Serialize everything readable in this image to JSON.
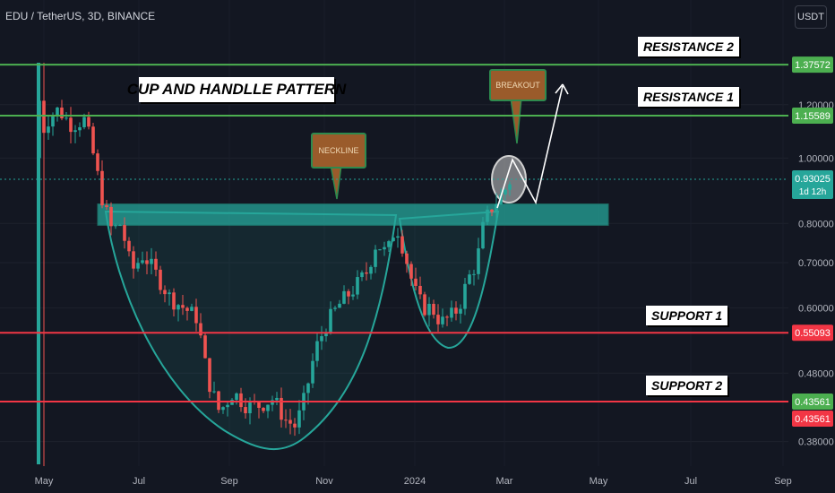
{
  "header": {
    "title": "EDU / TetherUS, 3D, BINANCE",
    "currency_button": "USDT"
  },
  "annotations": {
    "pattern_title": "CUP AND HANDLLE PATTERN",
    "neckline": "NECKLINE",
    "breakout": "BREAKOUT",
    "resistance_1": "RESISTANCE 1",
    "resistance_2": "RESISTANCE 2",
    "support_1": "SUPPORT 1",
    "support_2": "SUPPORT 2"
  },
  "price_tags": {
    "resistance_2": "1.37572",
    "resistance_1": "1.15589",
    "current_price": "0.93025",
    "countdown": "1d 12h",
    "support_1": "0.55093",
    "support_2_a": "0.43561",
    "support_2_b": "0.43561"
  },
  "colors": {
    "background": "#131722",
    "bull": "#26a69a",
    "bear": "#ef5350",
    "resistance_line": "#4caf50",
    "support_line": "#f23645",
    "neckline_zone": "#26a69a",
    "current_price_tag": "#26a69a"
  },
  "chart_data": {
    "type": "candlestick",
    "scale": "log",
    "y_ticks": [
      "1.20000",
      "1.00000",
      "0.80000",
      "0.70000",
      "0.60000",
      "0.48000",
      "0.38000"
    ],
    "x_ticks": [
      "May",
      "Jul",
      "Sep",
      "Nov",
      "2024",
      "Mar",
      "May",
      "Jul",
      "Sep"
    ],
    "levels": {
      "resistance_2": 1.37572,
      "resistance_1": 1.15589,
      "support_1": 0.55093,
      "support_2": 0.43561,
      "current": 0.93025
    },
    "neckline_zone": [
      0.795,
      0.855
    ]
  }
}
